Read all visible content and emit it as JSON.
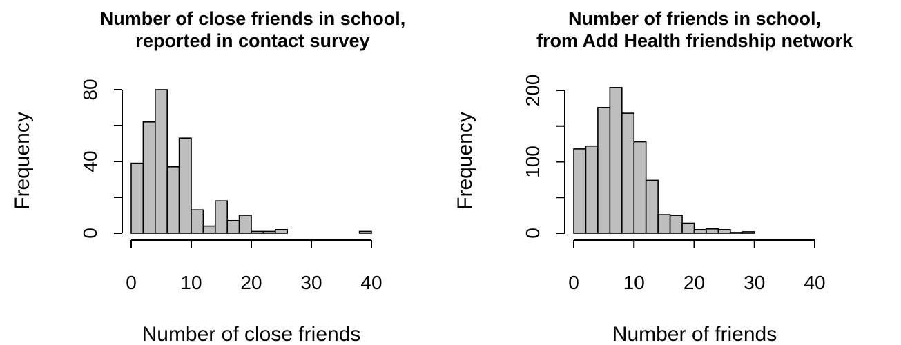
{
  "chart_data": [
    {
      "type": "bar",
      "title_line1": "Number of close friends in school,",
      "title_line2": "reported in contact survey",
      "xlabel": "Number of close friends",
      "ylabel": "Frequency",
      "bin_width": 2,
      "xlim": [
        0,
        40
      ],
      "ylim": [
        0,
        80
      ],
      "xticks": [
        0,
        10,
        20,
        30,
        40
      ],
      "yticks": [
        0,
        40,
        80
      ],
      "bins": [
        {
          "x0": 0,
          "x1": 2,
          "value": 39
        },
        {
          "x0": 2,
          "x1": 4,
          "value": 62
        },
        {
          "x0": 4,
          "x1": 6,
          "value": 80
        },
        {
          "x0": 6,
          "x1": 8,
          "value": 37
        },
        {
          "x0": 8,
          "x1": 10,
          "value": 53
        },
        {
          "x0": 10,
          "x1": 12,
          "value": 13
        },
        {
          "x0": 12,
          "x1": 14,
          "value": 4
        },
        {
          "x0": 14,
          "x1": 16,
          "value": 18
        },
        {
          "x0": 16,
          "x1": 18,
          "value": 7
        },
        {
          "x0": 18,
          "x1": 20,
          "value": 10
        },
        {
          "x0": 20,
          "x1": 22,
          "value": 1
        },
        {
          "x0": 22,
          "x1": 24,
          "value": 1
        },
        {
          "x0": 24,
          "x1": 26,
          "value": 2
        },
        {
          "x0": 26,
          "x1": 28,
          "value": 0
        },
        {
          "x0": 28,
          "x1": 30,
          "value": 0
        },
        {
          "x0": 30,
          "x1": 32,
          "value": 0
        },
        {
          "x0": 32,
          "x1": 34,
          "value": 0
        },
        {
          "x0": 34,
          "x1": 36,
          "value": 0
        },
        {
          "x0": 36,
          "x1": 38,
          "value": 0
        },
        {
          "x0": 38,
          "x1": 40,
          "value": 1
        }
      ],
      "bar_color": "#bebebe",
      "grid": false
    },
    {
      "type": "bar",
      "title_line1": "Number of friends in school,",
      "title_line2": "from Add Health friendship network",
      "xlabel": "Number of friends",
      "ylabel": "Frequency",
      "bin_width": 2,
      "xlim": [
        0,
        40
      ],
      "ylim": [
        0,
        200
      ],
      "xticks": [
        0,
        10,
        20,
        30,
        40
      ],
      "yticks": [
        0,
        100,
        200
      ],
      "bins": [
        {
          "x0": 0,
          "x1": 2,
          "value": 118
        },
        {
          "x0": 2,
          "x1": 4,
          "value": 122
        },
        {
          "x0": 4,
          "x1": 6,
          "value": 176
        },
        {
          "x0": 6,
          "x1": 8,
          "value": 204
        },
        {
          "x0": 8,
          "x1": 10,
          "value": 168
        },
        {
          "x0": 10,
          "x1": 12,
          "value": 128
        },
        {
          "x0": 12,
          "x1": 14,
          "value": 74
        },
        {
          "x0": 14,
          "x1": 16,
          "value": 26
        },
        {
          "x0": 16,
          "x1": 18,
          "value": 25
        },
        {
          "x0": 18,
          "x1": 20,
          "value": 14
        },
        {
          "x0": 20,
          "x1": 22,
          "value": 5
        },
        {
          "x0": 22,
          "x1": 24,
          "value": 6
        },
        {
          "x0": 24,
          "x1": 26,
          "value": 5
        },
        {
          "x0": 26,
          "x1": 28,
          "value": 1
        },
        {
          "x0": 28,
          "x1": 30,
          "value": 2
        }
      ],
      "bar_color": "#bebebe",
      "grid": false
    }
  ]
}
